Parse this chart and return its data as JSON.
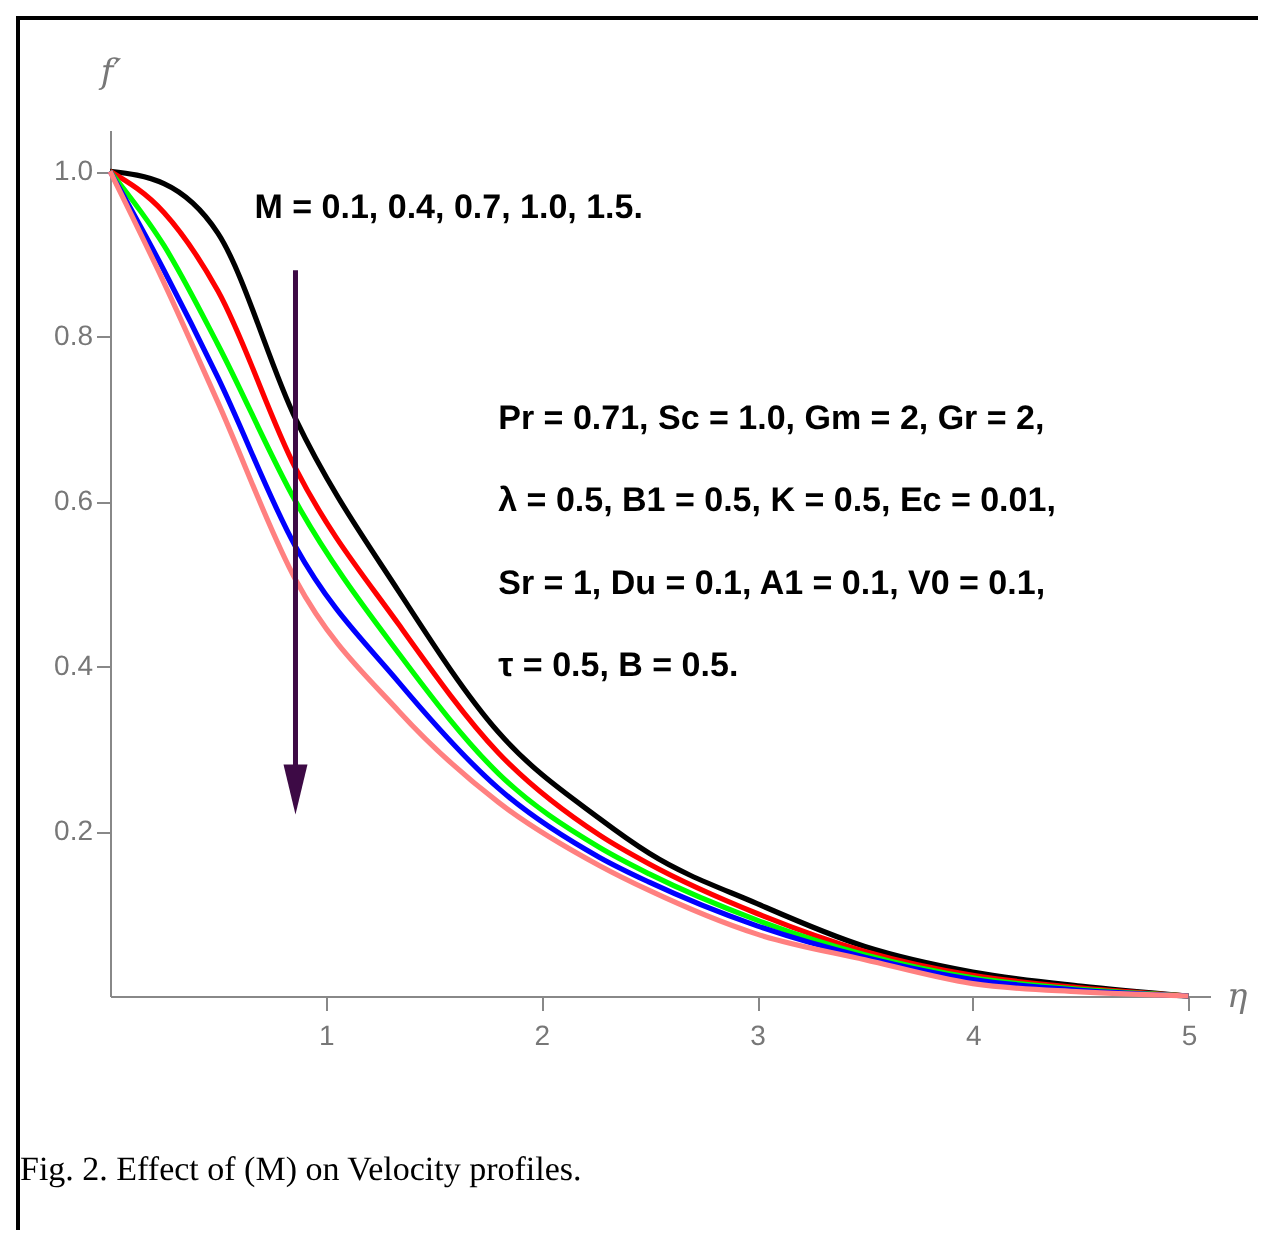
{
  "chart_data": {
    "type": "line",
    "title": "Fig. 2. Effect of (M) on Velocity profiles.",
    "xlabel": "η",
    "ylabel": "f′",
    "x": [
      0,
      0.25,
      0.5,
      0.86,
      1.34,
      1.8,
      2.27,
      2.5,
      3,
      3.5,
      4,
      4.5,
      5
    ],
    "series": [
      {
        "color": "#000000",
        "values": [
          1,
          0.985,
          0.925,
          0.7,
          0.49,
          0.32,
          0.215,
          0.173,
          0.112,
          0.06,
          0.029,
          0.012,
          0
        ]
      },
      {
        "color": "#ff0000",
        "values": [
          1,
          0.95,
          0.855,
          0.64,
          0.45,
          0.295,
          0.195,
          0.16,
          0.1,
          0.054,
          0.025,
          0.01,
          0
        ]
      },
      {
        "color": "#00ff00",
        "values": [
          1,
          0.91,
          0.79,
          0.6,
          0.415,
          0.27,
          0.18,
          0.148,
          0.092,
          0.05,
          0.022,
          0.008,
          0
        ]
      },
      {
        "color": "#0000ff",
        "values": [
          1,
          0.88,
          0.75,
          0.545,
          0.38,
          0.252,
          0.168,
          0.138,
          0.085,
          0.047,
          0.02,
          0.007,
          0
        ]
      },
      {
        "color": "#ff8080",
        "values": [
          1,
          0.865,
          0.72,
          0.505,
          0.345,
          0.235,
          0.158,
          0.128,
          0.075,
          0.044,
          0.015,
          0.005,
          0
        ]
      }
    ],
    "annotations": [
      "M = 0.1, 0.4, 0.7, 1.0, 1.5.",
      "Pr = 0.71, Sc = 1.0, Gm = 2, Gr = 2,",
      "λ = 0.5, B1 = 0.5,  K = 0.5, Ec  = 0.01,",
      "Sr = 1, Du = 0.1, A1 = 0.1, V0 = 0.1,",
      "τ = 0.5, B = 0.5."
    ],
    "xlim": [
      0,
      5.1
    ],
    "ylim": [
      0,
      1.05
    ],
    "xticks": [
      1,
      2,
      3,
      4,
      5
    ],
    "yticks": [
      0.2,
      0.4,
      0.6,
      0.8,
      {
        "value": 1,
        "label": "1.0"
      }
    ],
    "grid": false,
    "legend": false,
    "marker": "none",
    "line_style": "solid"
  }
}
